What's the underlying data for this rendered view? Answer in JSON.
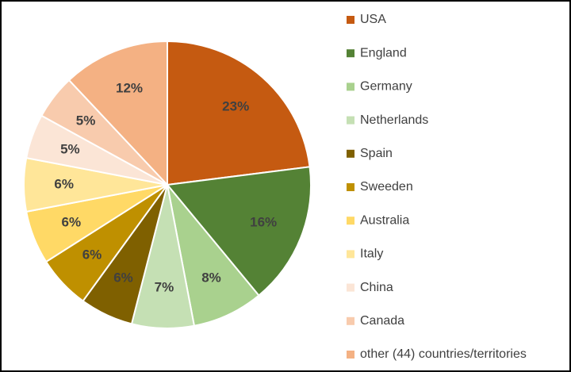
{
  "chart_data": {
    "type": "pie",
    "categories": [
      "USA",
      "England",
      "Germany",
      "Netherlands",
      "Spain",
      "Sweeden",
      "Australia",
      "Italy",
      "China",
      "Canada",
      "other (44) countries/territories"
    ],
    "values": [
      23,
      16,
      8,
      7,
      6,
      6,
      6,
      6,
      5,
      5,
      12
    ],
    "value_labels": [
      "23%",
      "16%",
      "8%",
      "7%",
      "6%",
      "6%",
      "6%",
      "6%",
      "5%",
      "5%",
      "12%"
    ],
    "colors": [
      "#c55a11",
      "#548235",
      "#a9d18e",
      "#c5e0b4",
      "#7f6000",
      "#bf9000",
      "#ffd966",
      "#ffe699",
      "#fbe5d6",
      "#f8cbad",
      "#f4b183"
    ],
    "legend": "right"
  }
}
